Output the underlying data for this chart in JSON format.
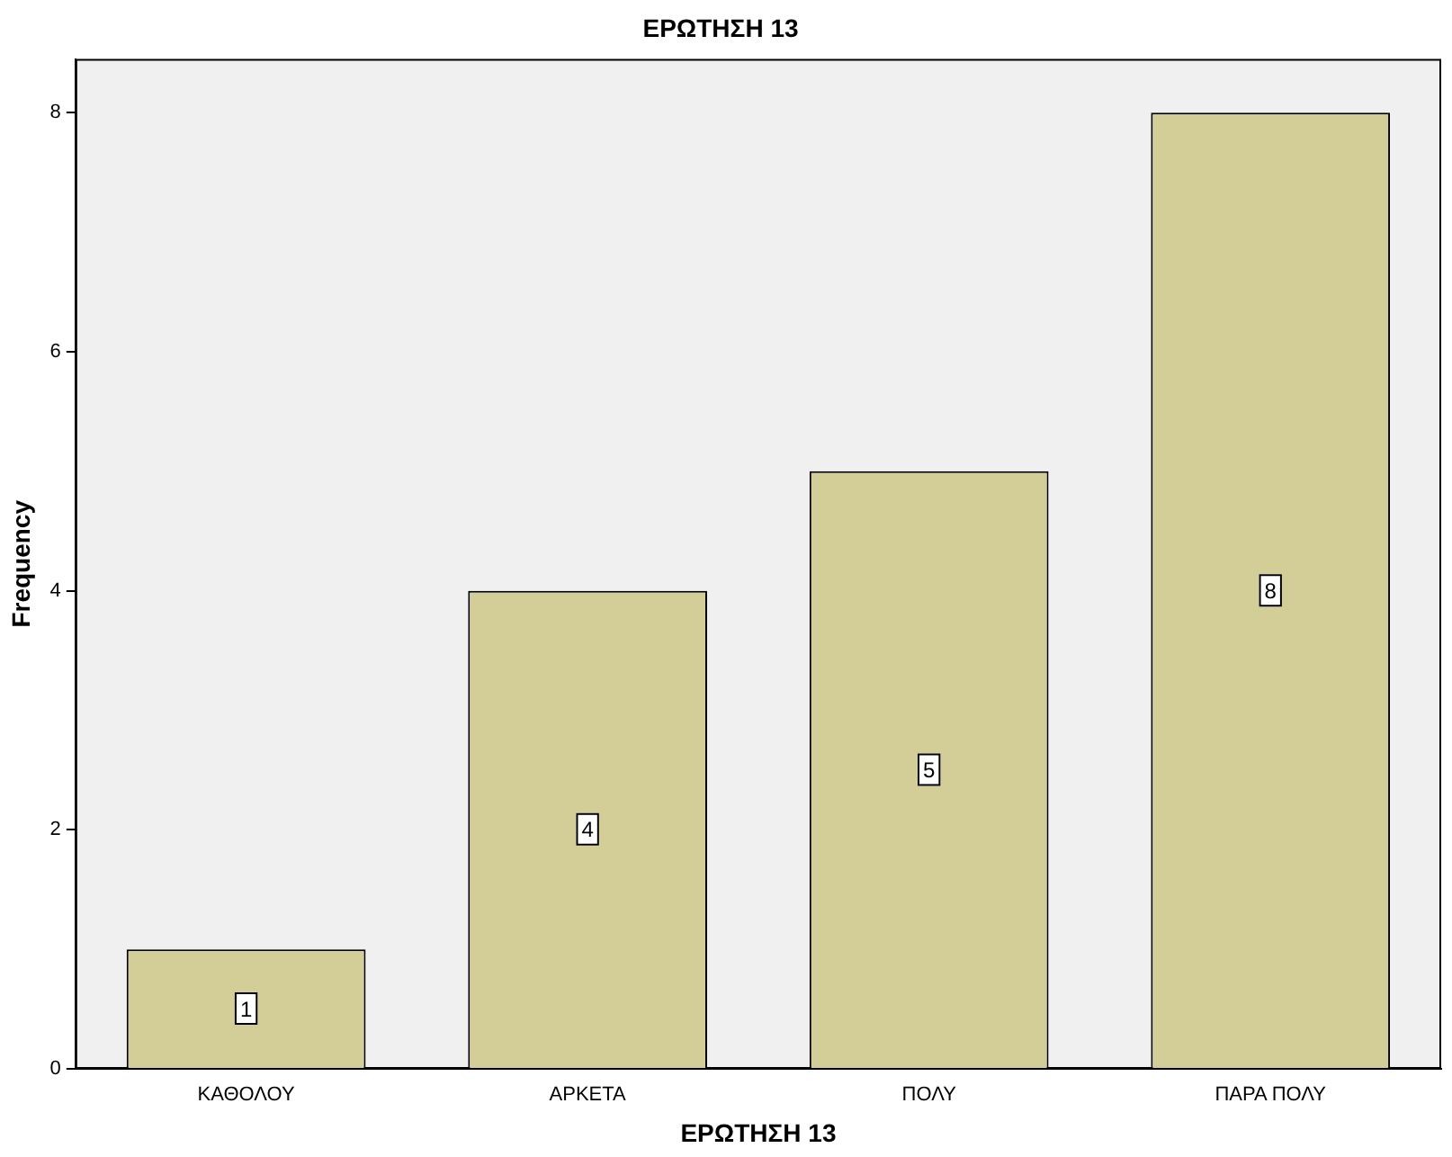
{
  "chart_data": {
    "type": "bar",
    "title": "ΕΡΩΤΗΣΗ 13",
    "xlabel": "ΕΡΩΤΗΣΗ 13",
    "ylabel": "Frequency",
    "categories": [
      "ΚΑΘΟΛΟΥ",
      "ΑΡΚΕΤΑ",
      "ΠΟΛΥ",
      "ΠΑΡΑ ΠΟΛΥ"
    ],
    "values": [
      1,
      4,
      5,
      8
    ],
    "color": "#d3ce97",
    "ylim": [
      0,
      8.45
    ],
    "yticks": [
      0,
      2,
      4,
      6,
      8
    ],
    "grid": false,
    "legend": false,
    "data_labels": true
  }
}
